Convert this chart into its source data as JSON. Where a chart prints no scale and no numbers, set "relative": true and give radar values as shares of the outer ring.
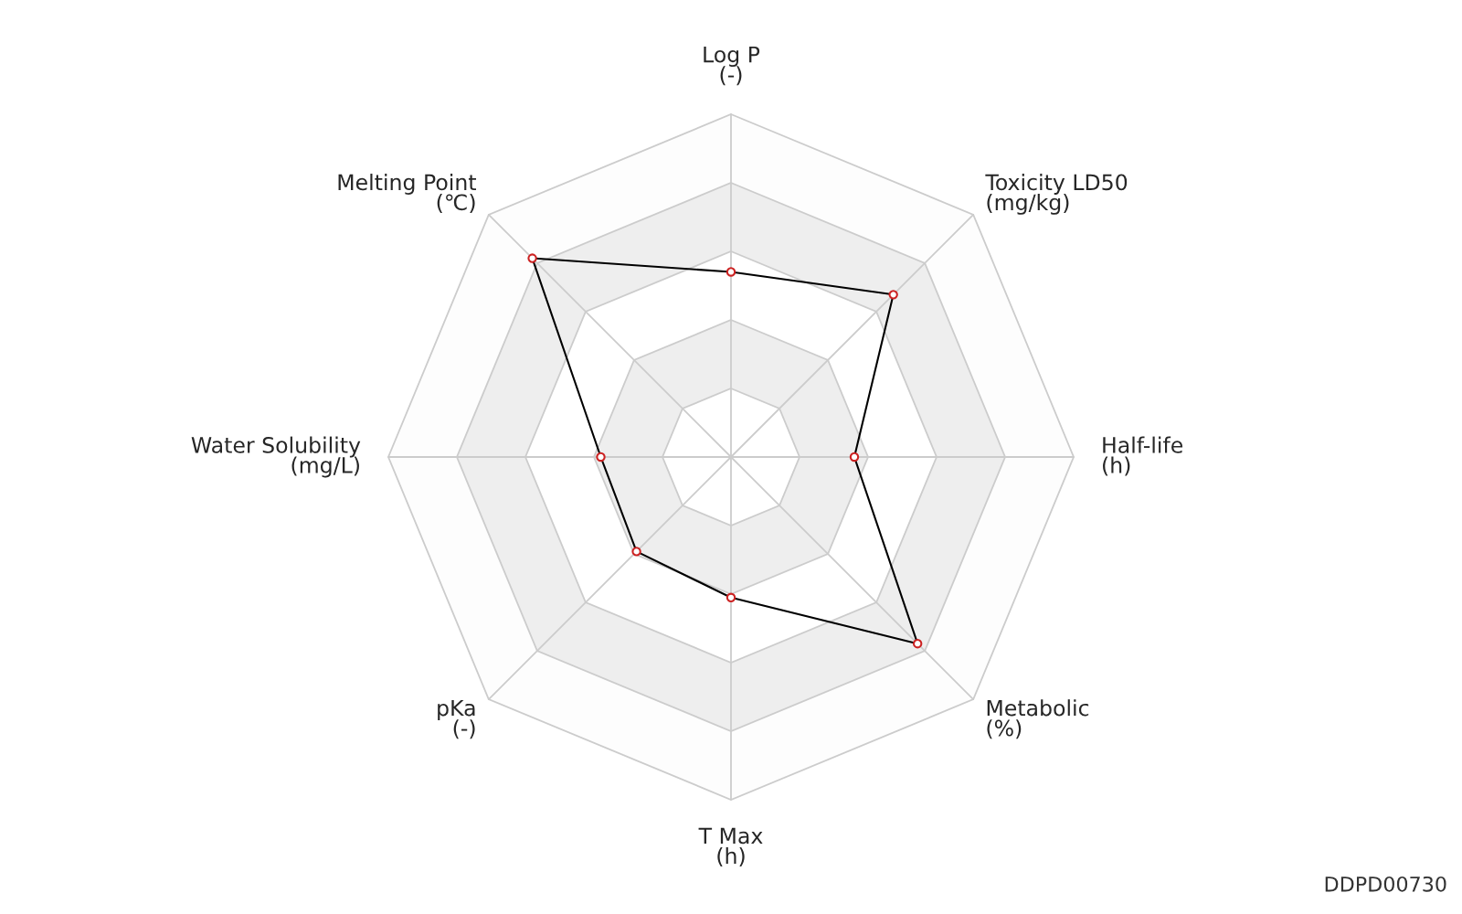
{
  "chart_data": {
    "type": "radar",
    "relative": true,
    "categories": [
      "Log P\n(-)",
      "Toxicity LD50\n(mg/kg)",
      "Half-life\n(h)",
      "Metabolic\n(%)",
      "T Max\n(h)",
      "pKa\n(-)",
      "Water Solubility\n(mg/L)",
      "Melting Point\n(℃)"
    ],
    "series": [
      {
        "color": "#000000",
        "values": [
          0.54,
          0.67,
          0.36,
          0.77,
          0.41,
          0.39,
          0.38,
          0.82
        ]
      }
    ],
    "marker": "circle",
    "grid": true,
    "legend": false,
    "annotations": [
      "DDPD00730"
    ]
  }
}
